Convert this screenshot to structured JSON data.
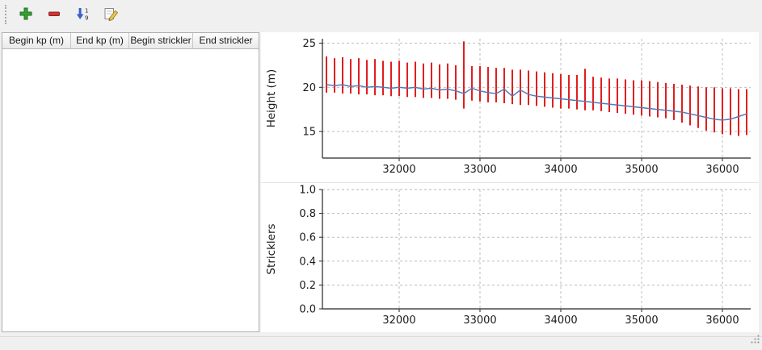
{
  "toolbar": {
    "buttons": [
      {
        "id": "add-row",
        "icon": "plus-icon"
      },
      {
        "id": "remove-row",
        "icon": "minus-icon"
      },
      {
        "id": "sort-rows",
        "icon": "sort-numeric-icon"
      },
      {
        "id": "edit-row",
        "icon": "edit-pencil-icon"
      }
    ]
  },
  "table": {
    "headers": [
      "Begin kp (m)",
      "End kp (m)",
      "Begin strickler",
      "End strickler"
    ],
    "rows": []
  },
  "colors": {
    "window_bg": "#f0f0f0",
    "errorbar_red": "#e01f1f",
    "line_blue": "#5878b4",
    "grid_gray": "#b5b5b5"
  },
  "chart_data": [
    {
      "type": "line",
      "title": "",
      "xlabel": "",
      "ylabel": "Height (m)",
      "xlim": [
        31050,
        36350
      ],
      "ylim": [
        12,
        25.5
      ],
      "xticks": [
        32000,
        33000,
        34000,
        35000,
        36000
      ],
      "xtick_labels": [
        "32000",
        "33000",
        "34000",
        "35000",
        "36000"
      ],
      "yticks": [
        15,
        20,
        25
      ],
      "ytick_labels": [
        "15",
        "20",
        "25"
      ],
      "grid": "dashed",
      "legend": "none",
      "series": [
        {
          "name": "cross-section-height-range",
          "kind": "errorbar",
          "color": "#e01f1f",
          "x": [
            31100,
            31200,
            31300,
            31400,
            31500,
            31600,
            31700,
            31800,
            31900,
            32000,
            32100,
            32200,
            32300,
            32400,
            32500,
            32600,
            32700,
            32800,
            32900,
            33000,
            33100,
            33200,
            33300,
            33400,
            33500,
            33600,
            33700,
            33800,
            33900,
            34000,
            34100,
            34200,
            34300,
            34400,
            34500,
            34600,
            34700,
            34800,
            34900,
            35000,
            35100,
            35200,
            35300,
            35400,
            35500,
            35600,
            35700,
            35800,
            35900,
            36000,
            36100,
            36200,
            36300
          ],
          "low": [
            19.4,
            19.4,
            19.3,
            19.3,
            19.2,
            19.2,
            19.1,
            19.1,
            19.0,
            19.0,
            18.9,
            18.9,
            18.8,
            18.8,
            18.7,
            18.7,
            18.6,
            17.6,
            18.5,
            18.4,
            18.3,
            18.3,
            18.2,
            18.1,
            18.0,
            18.0,
            17.9,
            17.8,
            17.7,
            17.6,
            17.6,
            17.5,
            17.4,
            17.4,
            17.3,
            17.2,
            17.1,
            17.0,
            16.9,
            16.8,
            16.7,
            16.6,
            16.5,
            16.3,
            16.0,
            15.7,
            15.4,
            15.1,
            14.9,
            14.7,
            14.6,
            14.5,
            14.6
          ],
          "high": [
            23.5,
            23.3,
            23.4,
            23.2,
            23.3,
            23.1,
            23.2,
            23.0,
            22.9,
            23.0,
            22.8,
            22.9,
            22.7,
            22.8,
            22.6,
            22.7,
            22.5,
            25.2,
            22.4,
            22.4,
            22.3,
            22.2,
            22.2,
            22.0,
            22.0,
            21.9,
            21.8,
            21.7,
            21.6,
            21.5,
            21.4,
            21.4,
            22.1,
            21.2,
            21.1,
            21.0,
            21.0,
            20.9,
            20.8,
            20.8,
            20.7,
            20.6,
            20.5,
            20.4,
            20.3,
            20.2,
            20.1,
            20.0,
            20.0,
            19.9,
            19.9,
            19.8,
            19.8
          ]
        },
        {
          "name": "mean-bed-height",
          "kind": "line",
          "color": "#5878b4",
          "x": [
            31100,
            31200,
            31300,
            31400,
            31500,
            31600,
            31700,
            31800,
            31900,
            32000,
            32100,
            32200,
            32300,
            32400,
            32500,
            32600,
            32700,
            32800,
            32900,
            33000,
            33100,
            33200,
            33300,
            33400,
            33500,
            33600,
            33700,
            33800,
            33900,
            34000,
            34100,
            34200,
            34300,
            34400,
            34500,
            34600,
            34700,
            34800,
            34900,
            35000,
            35100,
            35200,
            35300,
            35400,
            35500,
            35600,
            35700,
            35800,
            35900,
            36000,
            36100,
            36200,
            36300
          ],
          "y": [
            20.3,
            20.2,
            20.3,
            20.1,
            20.2,
            20.0,
            20.1,
            20.0,
            19.9,
            20.0,
            19.9,
            20.0,
            19.8,
            19.9,
            19.7,
            19.8,
            19.6,
            19.3,
            19.9,
            19.6,
            19.4,
            19.3,
            19.8,
            19.0,
            19.7,
            19.2,
            19.0,
            18.9,
            18.8,
            18.7,
            18.6,
            18.5,
            18.4,
            18.3,
            18.2,
            18.1,
            18.0,
            17.9,
            17.8,
            17.7,
            17.6,
            17.5,
            17.4,
            17.3,
            17.2,
            17.0,
            16.8,
            16.6,
            16.4,
            16.3,
            16.4,
            16.7,
            17.0
          ]
        }
      ]
    },
    {
      "type": "line",
      "title": "",
      "xlabel": "",
      "ylabel": "Stricklers",
      "xlim": [
        31050,
        36350
      ],
      "ylim": [
        0,
        1
      ],
      "xticks": [
        32000,
        33000,
        34000,
        35000,
        36000
      ],
      "xtick_labels": [
        "32000",
        "33000",
        "34000",
        "35000",
        "36000"
      ],
      "yticks": [
        0,
        0.2,
        0.4,
        0.6,
        0.8,
        1
      ],
      "ytick_labels": [
        "0.0",
        "0.2",
        "0.4",
        "0.6",
        "0.8",
        "1.0"
      ],
      "grid": "dashed",
      "legend": "none",
      "series": []
    }
  ]
}
